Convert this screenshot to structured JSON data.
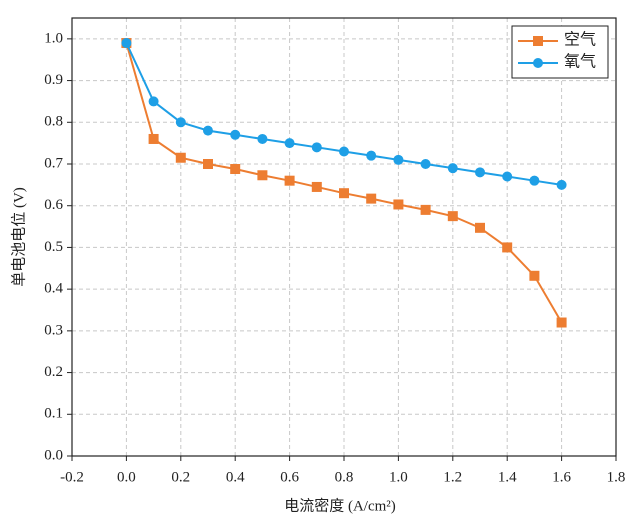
{
  "chart_data": {
    "type": "line",
    "x_label": "电流密度 (A/cm²)",
    "y_label": "单电池电位 (V)",
    "x": [
      0,
      0.1,
      0.2,
      0.3,
      0.4,
      0.5,
      0.6,
      0.7,
      0.8,
      0.9,
      1.0,
      1.1,
      1.2,
      1.3,
      1.4,
      1.5,
      1.6
    ],
    "series": [
      {
        "name": "空气",
        "color": "#ed7d31",
        "marker": "square",
        "values": [
          0.99,
          0.76,
          0.715,
          0.7,
          0.688,
          0.673,
          0.66,
          0.645,
          0.63,
          0.617,
          0.603,
          0.59,
          0.575,
          0.547,
          0.5,
          0.432,
          0.32
        ]
      },
      {
        "name": "氧气",
        "color": "#1e9fe6",
        "marker": "circle",
        "values": [
          0.99,
          0.85,
          0.8,
          0.78,
          0.77,
          0.76,
          0.75,
          0.74,
          0.73,
          0.72,
          0.71,
          0.7,
          0.69,
          0.68,
          0.67,
          0.66,
          0.65
        ]
      }
    ],
    "xlim": [
      -0.2,
      1.8
    ],
    "xticks": [
      -0.2,
      {
        "value": 0,
        "label": "0.0"
      },
      0.2,
      0.4,
      0.6,
      0.8,
      {
        "value": 1,
        "label": "1.0"
      },
      1.2,
      1.4,
      1.6,
      1.8
    ],
    "ylim": [
      0,
      1.05
    ],
    "yticks": [
      {
        "value": 0,
        "label": "0.0"
      },
      0.1,
      0.2,
      0.3,
      0.4,
      0.5,
      0.6,
      0.7,
      0.8,
      0.9,
      {
        "value": 1,
        "label": "1.0"
      }
    ],
    "grid": true,
    "legend": "upper-right"
  }
}
